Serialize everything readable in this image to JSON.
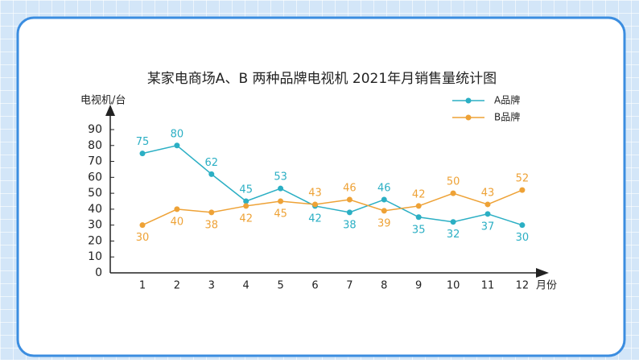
{
  "chart_data": {
    "type": "line",
    "title": "某家电商场A、B 两种品牌电视机 2021年月销售量统计图",
    "y_label": "电视机/台",
    "x_label": "月份",
    "categories": [
      "1",
      "2",
      "3",
      "4",
      "5",
      "6",
      "7",
      "8",
      "9",
      "10",
      "11",
      "12"
    ],
    "series": [
      {
        "name": "A品牌",
        "color": "#2bafc4",
        "values": [
          75,
          80,
          62,
          45,
          53,
          42,
          38,
          46,
          35,
          32,
          37,
          30
        ]
      },
      {
        "name": "B品牌",
        "color": "#eea236",
        "values": [
          30,
          40,
          38,
          42,
          45,
          43,
          46,
          39,
          42,
          50,
          43,
          52
        ]
      }
    ],
    "ylim": [
      0,
      90
    ],
    "yticks": [
      0,
      10,
      20,
      30,
      40,
      50,
      60,
      70,
      80,
      90
    ],
    "grid": false,
    "legend": "upper right"
  }
}
